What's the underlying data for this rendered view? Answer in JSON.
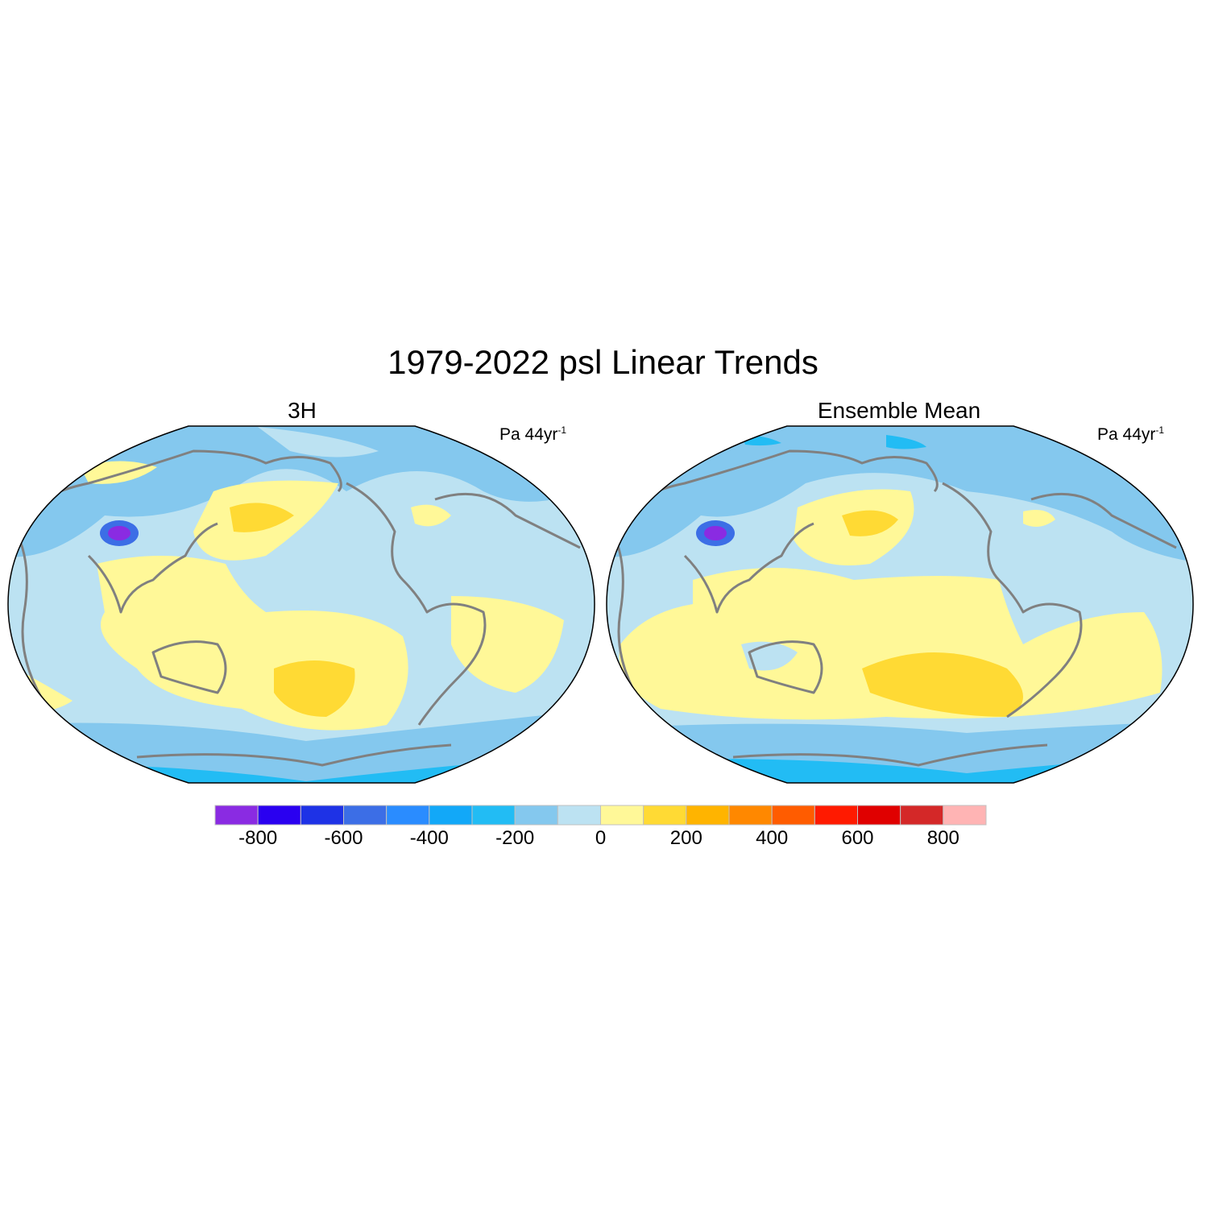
{
  "title": "1979-2022 psl Linear Trends",
  "panels": [
    {
      "title": "3H",
      "units": "Pa 44yr",
      "units_sup": "-1"
    },
    {
      "title": "Ensemble Mean",
      "units": "Pa 44yr",
      "units_sup": "-1"
    }
  ],
  "colorbar": {
    "levels": [
      -900,
      -800,
      -700,
      -600,
      -500,
      -400,
      -300,
      -200,
      -100,
      0,
      100,
      200,
      300,
      400,
      500,
      600,
      700,
      800,
      900
    ],
    "labels": [
      "-800",
      "-600",
      "-400",
      "-200",
      "0",
      "200",
      "400",
      "600",
      "800"
    ],
    "colors": [
      "#8a2be2",
      "#2a00f0",
      "#1e32e6",
      "#3c6ee6",
      "#2a8cff",
      "#12a8f8",
      "#22bcf4",
      "#84c8ee",
      "#bce2f2",
      "#fff898",
      "#ffda34",
      "#ffb400",
      "#ff8800",
      "#ff5c00",
      "#ff1a00",
      "#e00000",
      "#d42828",
      "#ffb4b4"
    ]
  },
  "colors": {
    "coastline": "#808080",
    "outline": "#000000"
  }
}
